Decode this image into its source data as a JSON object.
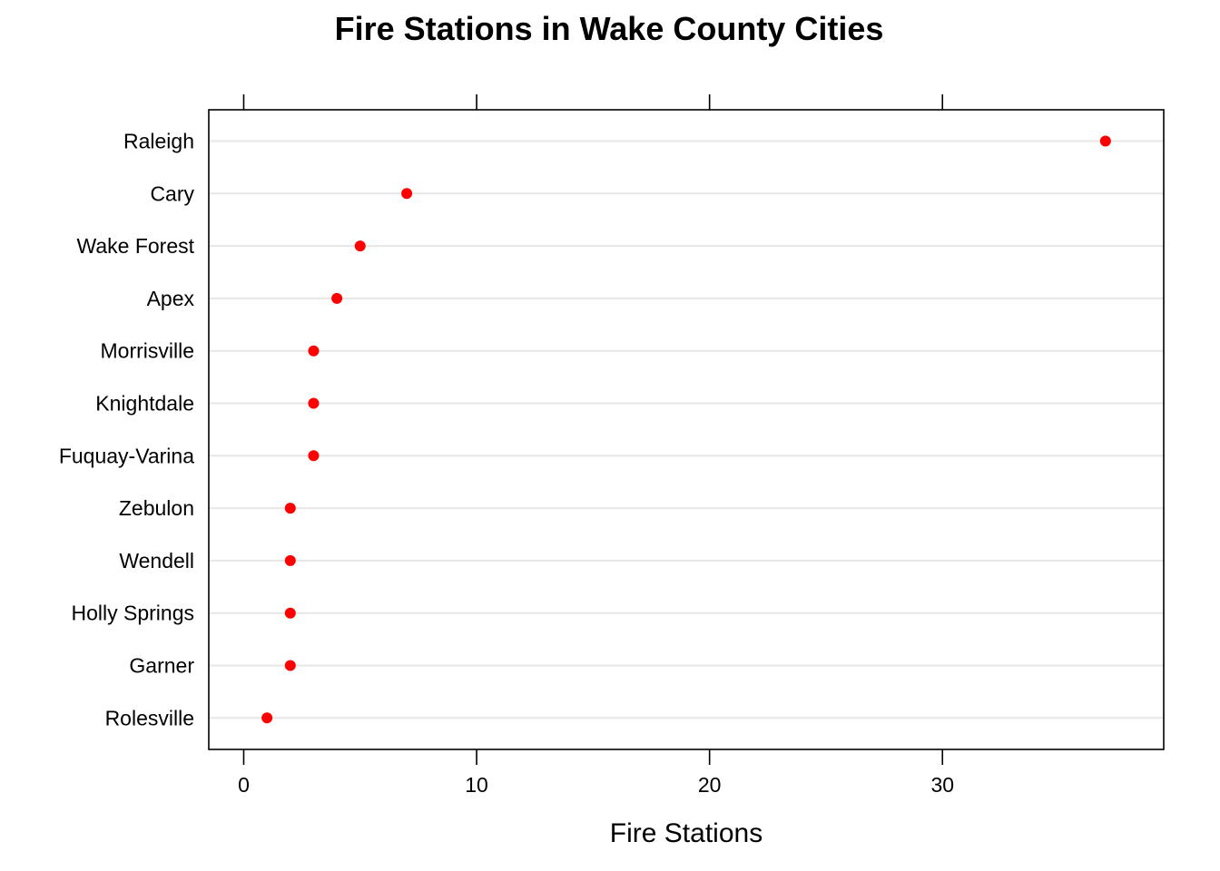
{
  "chart_data": {
    "type": "scatter",
    "title": "Fire Stations in Wake County Cities",
    "xlabel": "Fire Stations",
    "ylabel": "",
    "categories": [
      "Raleigh",
      "Cary",
      "Wake Forest",
      "Apex",
      "Morrisville",
      "Knightdale",
      "Fuquay-Varina",
      "Zebulon",
      "Wendell",
      "Holly Springs",
      "Garner",
      "Rolesville"
    ],
    "values": [
      37,
      7,
      5,
      4,
      3,
      3,
      3,
      2,
      2,
      2,
      2,
      1
    ],
    "xlim": [
      -1.5,
      39.5
    ],
    "xticks": [
      0,
      10,
      20,
      30
    ],
    "xtick_labels": [
      "0",
      "10",
      "20",
      "30"
    ],
    "grid": "horizontal",
    "point_color": "#ff0000",
    "gridline_color": "#e6e6e6"
  }
}
